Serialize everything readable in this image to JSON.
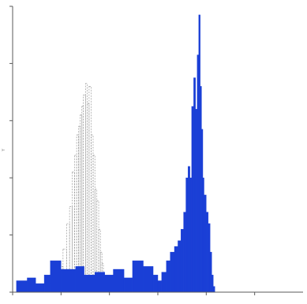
{
  "chart_data": {
    "type": "area",
    "subtype": "flow-cytometry-histogram-overlay",
    "title": "",
    "xlabel": "",
    "ylabel": "",
    "x_scale": "log",
    "xlim": [
      0.1,
      100000
    ],
    "ylim": [
      0,
      100
    ],
    "x_major_ticks": [
      0.1,
      1,
      10,
      100,
      1000,
      10000
    ],
    "y_major_ticks": [
      0,
      20,
      40,
      60,
      80,
      100
    ],
    "tick_labels": {
      "x": [
        "",
        "",
        "",
        "",
        "",
        ""
      ],
      "y": [
        "",
        "",
        "",
        "",
        "",
        ""
      ],
      "y_axis_mark": "Y"
    },
    "grid": false,
    "legend": "none",
    "series": [
      {
        "style": "outline",
        "color": "#8c8c8c",
        "x": [
          0.5,
          0.7,
          0.9,
          1.1,
          1.3,
          1.5,
          1.7,
          1.9,
          2.1,
          2.3,
          2.5,
          2.7,
          2.9,
          3.2,
          3.5,
          3.8,
          4.2,
          4.6,
          5.0,
          5.5,
          6.0,
          6.5,
          7.0,
          7.5,
          8.0,
          8.5,
          9.0
        ],
        "values": [
          3,
          6,
          9,
          15,
          24,
          30,
          42,
          48,
          55,
          58,
          62,
          65,
          69,
          73,
          66,
          72,
          55,
          48,
          36,
          32,
          22,
          14,
          10,
          6,
          4,
          3,
          1
        ]
      },
      {
        "style": "filled",
        "color": "#1a3fd6",
        "x": [
          0.12,
          0.2,
          0.3,
          0.45,
          0.6,
          1.0,
          2.0,
          3.0,
          5.0,
          8.0,
          12,
          20,
          30,
          50,
          80,
          100,
          120,
          150,
          180,
          220,
          260,
          300,
          340,
          380,
          420,
          460,
          500,
          550,
          600,
          650,
          700,
          750,
          800,
          850,
          900,
          1000,
          1100,
          1200,
          1300,
          1400
        ],
        "values": [
          4,
          5,
          3,
          6,
          11,
          8,
          9,
          6,
          7,
          6,
          8,
          5,
          11,
          9,
          6,
          4,
          7,
          11,
          14,
          16,
          18,
          22,
          28,
          40,
          44,
          40,
          65,
          75,
          64,
          83,
          97,
          72,
          57,
          40,
          34,
          28,
          24,
          14,
          6,
          2
        ]
      }
    ]
  }
}
